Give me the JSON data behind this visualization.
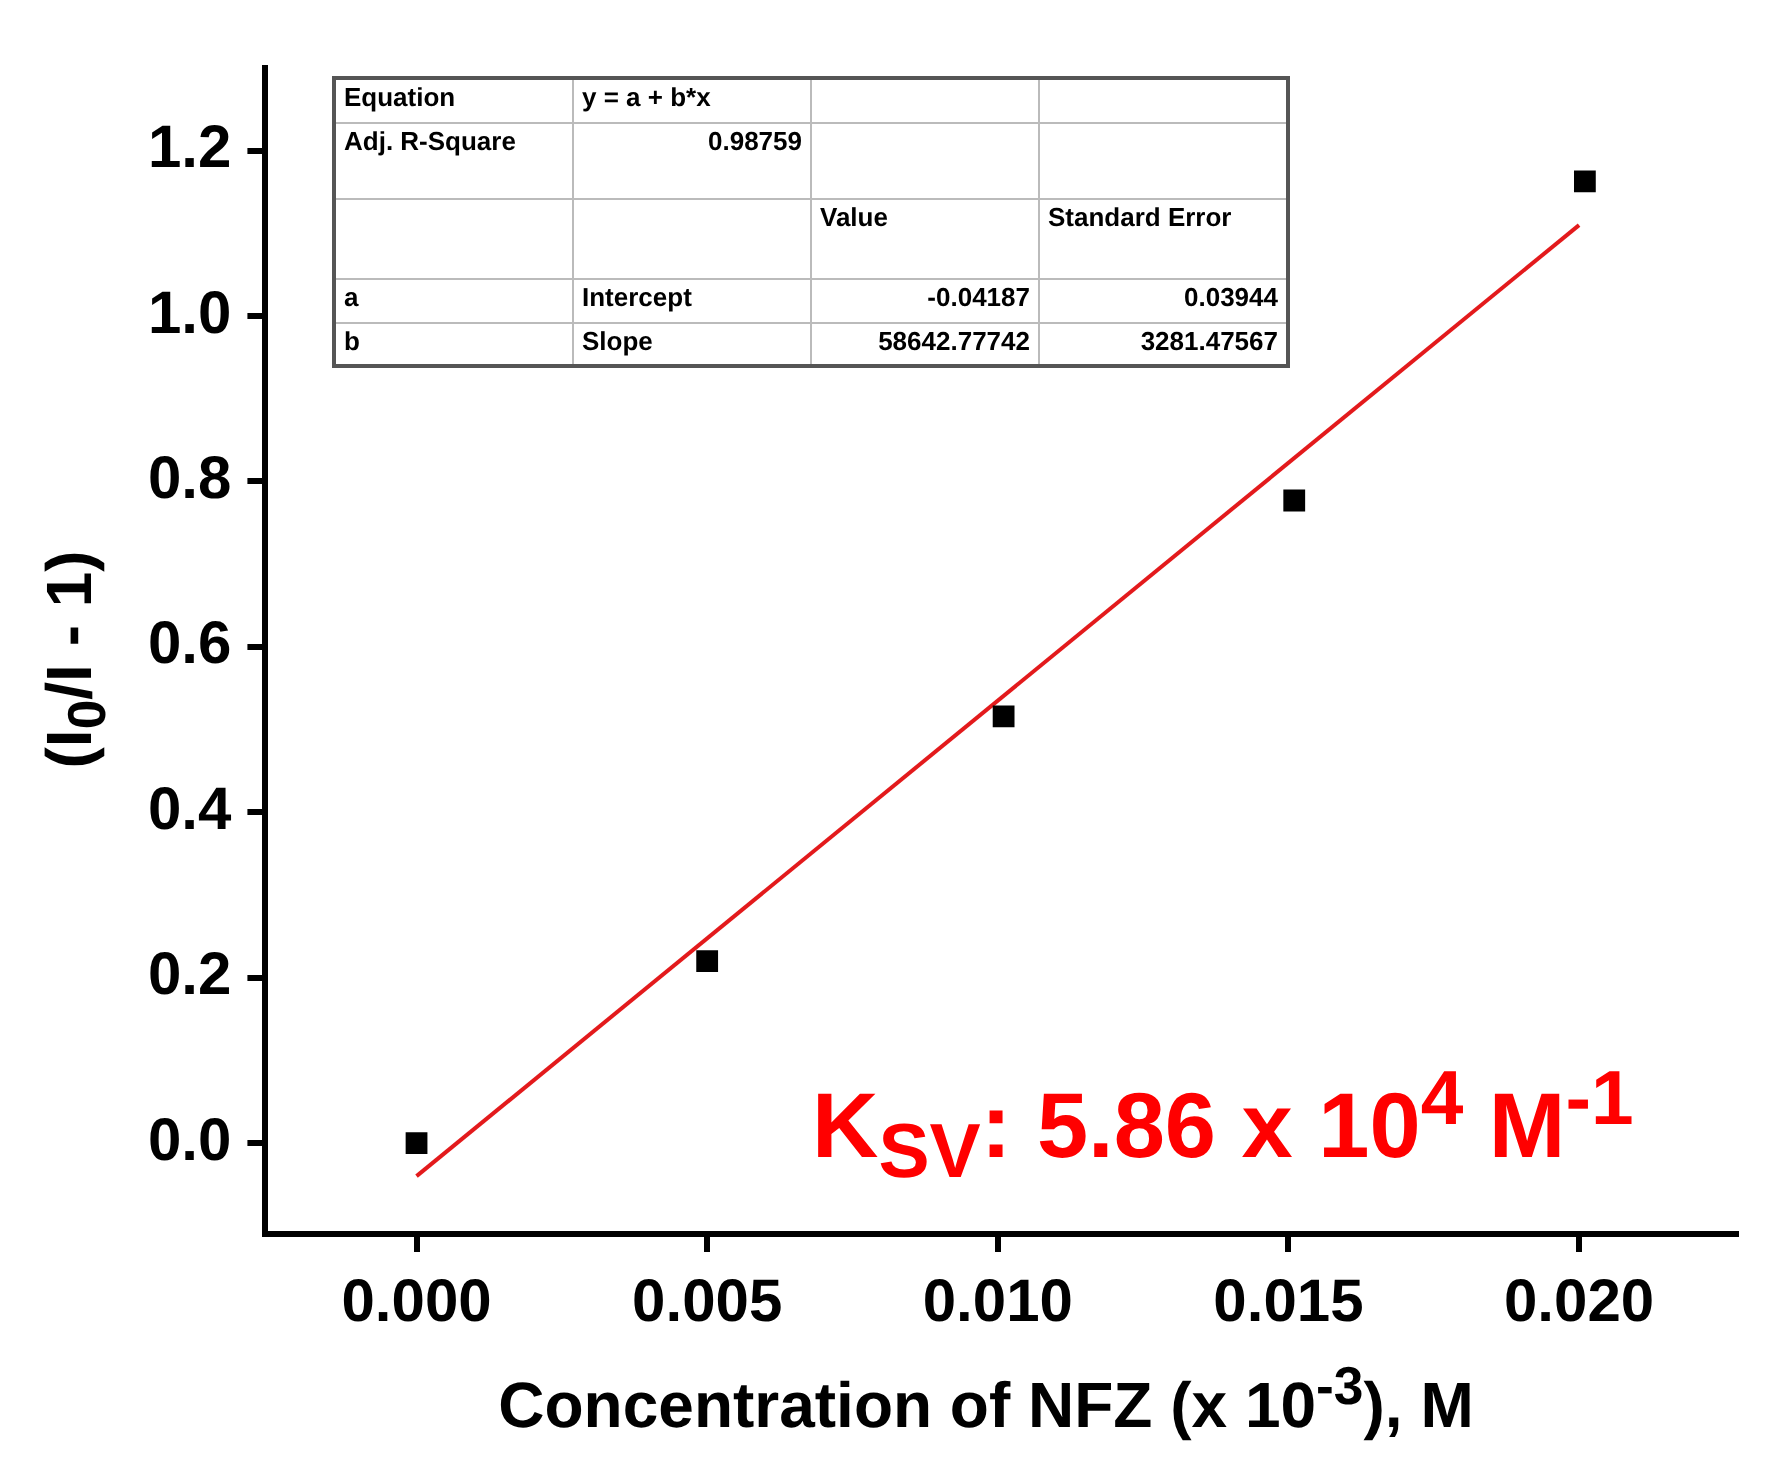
{
  "chart_data": {
    "type": "scatter",
    "xlabel": "Concentration of NFZ (x 10$^{-3}$), M",
    "ylabel": "(I$_{0}$/I - 1)",
    "x": [
      0,
      0.005,
      0.0101,
      0.0151,
      0.0201
    ],
    "series": [
      {
        "color": "#000000",
        "marker": "square",
        "values": [
          0,
          0.22,
          0.516,
          0.777,
          1.163
        ]
      },
      {
        "type": "line",
        "color": "#e31a1c",
        "marker": "none",
        "x": [
          0,
          0.02
        ],
        "values": [
          -0.04,
          1.11
        ]
      }
    ],
    "xlim": [
      -0.0026,
      0.0227
    ],
    "ylim": [
      -0.11,
      1.3
    ],
    "xticks": [
      {
        "value": 0,
        "label": "0.000"
      },
      {
        "value": 0.005,
        "label": "0.005"
      },
      {
        "value": 0.01,
        "label": "0.010"
      },
      {
        "value": 0.015,
        "label": "0.015"
      },
      {
        "value": 0.02,
        "label": "0.020"
      }
    ],
    "yticks": [
      {
        "value": 0,
        "label": "0.0"
      },
      {
        "value": 0.2,
        "label": "0.2"
      },
      {
        "value": 0.4,
        "label": "0.4"
      },
      {
        "value": 0.6,
        "label": "0.6"
      },
      {
        "value": 0.8,
        "label": "0.8"
      },
      {
        "value": 1,
        "label": "1.0"
      },
      {
        "value": 1.2,
        "label": "1.2"
      }
    ],
    "grid": false,
    "legend": false,
    "annotations": [
      "Equation",
      "y = a + b*x",
      "Adj. R-Square",
      "0.98759",
      "Value",
      "Standard Error",
      "a",
      "Intercept",
      "-0.04187",
      "0.03944",
      "b",
      "Slope",
      "58642.77742",
      "3281.47567",
      "K$_{SV}$: 5.86 x 10$^{4}$ M$^{-1}$"
    ]
  }
}
